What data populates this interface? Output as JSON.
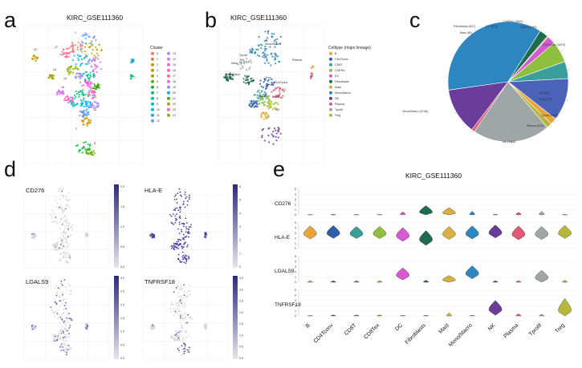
{
  "panels": {
    "a": "a",
    "b": "b",
    "c": "c",
    "d": "d",
    "e": "e"
  },
  "panel_a": {
    "title": "KIRC_GSE111360",
    "legend_title": "Cluster",
    "clusters": [
      "0",
      "1",
      "2",
      "3",
      "4",
      "5",
      "6",
      "7",
      "8",
      "9",
      "10",
      "11",
      "12",
      "13",
      "14",
      "15",
      "16",
      "17",
      "18",
      "19",
      "20",
      "21",
      "22",
      "23",
      "24"
    ],
    "colors": [
      "#f8766d",
      "#e88526",
      "#d39200",
      "#b79f00",
      "#93aa00",
      "#5eb300",
      "#00ba38",
      "#00bf74",
      "#00c19f",
      "#00bfc4",
      "#00b9e3",
      "#00adfa",
      "#619cff",
      "#ae87ff",
      "#db72fb",
      "#f564e3",
      "#ff61c3",
      "#ff699c",
      "#e76bf3",
      "#9590ff",
      "#00b0f6",
      "#39b600",
      "#c49a00",
      "#fd61d1",
      "#a3a500"
    ],
    "map_labels": [
      "22",
      "1",
      "17",
      "10",
      "18",
      "3",
      "19",
      "0",
      "24",
      "4",
      "8",
      "15",
      "20",
      "7",
      "23",
      "9",
      "11",
      "13",
      "12",
      "16",
      "2",
      "6",
      "5",
      "14",
      "21"
    ]
  },
  "panel_b": {
    "title": "KIRC_GSE111360",
    "legend_title": "Celltype (major lineage)",
    "celltypes": [
      "B",
      "CD4Tconv",
      "CD8T",
      "CD8Tex",
      "DC",
      "Fibroblasts",
      "Mast",
      "Mono/Macro",
      "NK",
      "Plasma",
      "Tprolif",
      "Treg"
    ],
    "colors": [
      "#e8a33b",
      "#2f5fa8",
      "#3a9e9a",
      "#8fbf3f",
      "#d65ad0",
      "#1f6b4d",
      "#d7b040",
      "#2e86c1",
      "#6a3d9a",
      "#e05a74",
      "#9fa6a6",
      "#b5b83a"
    ],
    "map_labels": [
      "Mono/Macro",
      "Mast",
      "Tprolif",
      "Plasma",
      "B",
      "Fibroblasts",
      "Treg",
      "CD4Tconv",
      "DC",
      "CD8Tex",
      "CD8T",
      "NK"
    ]
  },
  "panel_c": {
    "chart_data": {
      "type": "pie",
      "title": "",
      "slices": [
        {
          "label": "Mono/Macro",
          "value": 9746,
          "text": "Mono/Macro (9746)",
          "color": "#2e86c1"
        },
        {
          "label": "Fibroblasts",
          "value": 637,
          "text": "Fibroblasts (637)",
          "color": "#1f6b4d"
        },
        {
          "label": "Mast",
          "value": 80,
          "text": "Mast (80)",
          "color": "#d7b040"
        },
        {
          "label": "DC",
          "value": 610,
          "text": "DC (610)",
          "color": "#d65ad0"
        },
        {
          "label": "CD8Tex",
          "value": 1532,
          "text": "CD8Tex (1532)",
          "color": "#8fbf3f"
        },
        {
          "label": "CD8T",
          "value": 1245,
          "text": "CD8T (1245)",
          "color": "#3a9e9a"
        },
        {
          "label": "CD4Tconv",
          "value": 3075,
          "text": "CD4Tconv (3075)",
          "color": "#4a62b8"
        },
        {
          "label": "B",
          "value": 468,
          "text": "B (468)",
          "color": "#e8a33b"
        },
        {
          "label": "Treg",
          "value": 375,
          "text": "Treg (375)",
          "color": "#b5b83a"
        },
        {
          "label": "Tprolif",
          "value": 5602,
          "text": "Tprolif (5602)",
          "color": "#9fa6a6"
        },
        {
          "label": "Plasma",
          "value": 220,
          "text": "Plasma (220)",
          "color": "#e05a74"
        },
        {
          "label": "NK",
          "value": 3360,
          "text": "NK (3360)",
          "color": "#6a3d9a"
        }
      ]
    }
  },
  "panel_d": {
    "features": [
      {
        "name": "CD276",
        "ticks": [
          "2.0",
          "1.5",
          "1.0",
          "0.5",
          "0.0"
        ]
      },
      {
        "name": "HLA-E",
        "ticks": [
          "6",
          "5",
          "4",
          "3",
          "2",
          "1",
          "0"
        ]
      },
      {
        "name": "LGALS9",
        "ticks": [
          "3.0",
          "2.5",
          "2.0",
          "1.5",
          "1.0",
          "0.5",
          "0.0"
        ]
      },
      {
        "name": "TNFRSF18",
        "ticks": [
          "3.5",
          "3.0",
          "2.5",
          "2.0",
          "1.5",
          "1.0",
          "0.5",
          "0.0"
        ]
      }
    ]
  },
  "panel_e": {
    "chart_data": {
      "type": "violin",
      "title": "KIRC_GSE111360",
      "categories": [
        "B",
        "CD4Tconv",
        "CD8T",
        "CD8Tex",
        "DC",
        "Fibroblasts",
        "Mast",
        "Mono/Macro",
        "NK",
        "Plasma",
        "Tprolif",
        "Treg"
      ],
      "colors": [
        "#e8a33b",
        "#2f5fa8",
        "#3a9e9a",
        "#8fbf3f",
        "#d65ad0",
        "#1f6b4d",
        "#d7b040",
        "#2e86c1",
        "#6a3d9a",
        "#e05a74",
        "#9fa6a6",
        "#b5b83a"
      ],
      "ylim": [
        0,
        5
      ],
      "yticks": [
        "0",
        "1",
        "2",
        "3",
        "4",
        "5"
      ],
      "series": [
        {
          "name": "CD276",
          "medians": [
            0,
            0,
            0,
            0,
            0.1,
            0.6,
            0.4,
            0.1,
            0,
            0.1,
            0.1,
            0
          ],
          "spread": [
            0.1,
            0.1,
            0.1,
            0.1,
            0.5,
            1.2,
            1.0,
            0.6,
            0.1,
            0.4,
            0.6,
            0.1
          ]
        },
        {
          "name": "HLA-E",
          "medians": [
            3.0,
            3.1,
            3.0,
            3.0,
            2.6,
            1.9,
            2.9,
            3.0,
            3.2,
            2.9,
            2.9,
            3.1
          ],
          "spread": [
            1.4,
            1.4,
            1.3,
            1.3,
            1.5,
            1.6,
            1.4,
            1.4,
            1.4,
            1.5,
            1.4,
            1.4
          ]
        },
        {
          "name": "LGALS9",
          "medians": [
            0,
            0,
            0,
            0,
            1.5,
            0,
            0.5,
            1.8,
            0,
            0,
            1.0,
            0
          ],
          "spread": [
            0.3,
            0.3,
            0.3,
            0.3,
            1.3,
            0.4,
            0.8,
            1.4,
            0.3,
            0.3,
            1.3,
            0.4
          ]
        },
        {
          "name": "TNFRSF18",
          "medians": [
            0,
            0,
            0,
            0,
            0,
            0,
            0,
            0,
            1.4,
            0,
            0,
            1.2
          ],
          "spread": [
            0.1,
            0.2,
            0.2,
            0.2,
            0.1,
            0.1,
            0.6,
            0.1,
            1.6,
            0.4,
            0.3,
            2.2
          ]
        }
      ]
    }
  }
}
